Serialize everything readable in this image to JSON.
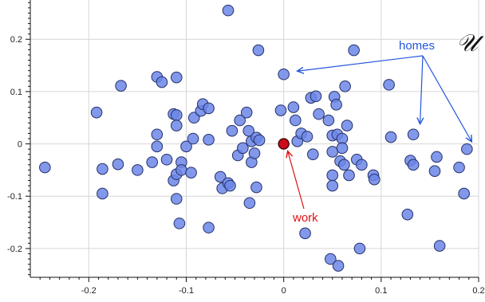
{
  "chart_data": {
    "type": "scatter",
    "xlim": [
      -0.26,
      0.2
    ],
    "ylim": [
      -0.255,
      0.275
    ],
    "xticks": [
      -0.2,
      -0.1,
      0,
      0.1,
      0.2
    ],
    "xtick_labels": [
      "-0.2",
      "-0.1",
      "0",
      "0.1",
      "0.2"
    ],
    "yticks": [
      -0.2,
      -0.1,
      0,
      0.1,
      0.2
    ],
    "ytick_labels": [
      "-0.2",
      "-0.1",
      "0",
      "0.1",
      "0.2"
    ],
    "grid": true,
    "colors": {
      "homes": "#6c86e8",
      "homes_edge": "#24306a",
      "work": "#cc0a1a",
      "homes_annotation": "#2255dd",
      "work_annotation": "#dd1111"
    },
    "annotations": {
      "homes_label": "homes",
      "set_symbol": "𝒰",
      "work_label": "work"
    },
    "work": {
      "x": 0.0,
      "y": 0.0
    },
    "homes_arrow_targets": [
      {
        "x": 0.009,
        "y": 0.133
      },
      {
        "x": 0.135,
        "y": 0.032
      },
      {
        "x": 0.188,
        "y": -0.002
      }
    ],
    "homes": [
      {
        "x": -0.245,
        "y": -0.045
      },
      {
        "x": -0.192,
        "y": 0.06
      },
      {
        "x": -0.186,
        "y": -0.048
      },
      {
        "x": -0.186,
        "y": -0.095
      },
      {
        "x": -0.17,
        "y": -0.039
      },
      {
        "x": -0.167,
        "y": 0.111
      },
      {
        "x": -0.15,
        "y": -0.05
      },
      {
        "x": -0.135,
        "y": -0.035
      },
      {
        "x": -0.13,
        "y": 0.128
      },
      {
        "x": -0.13,
        "y": 0.018
      },
      {
        "x": -0.13,
        "y": -0.005
      },
      {
        "x": -0.125,
        "y": 0.118
      },
      {
        "x": -0.12,
        "y": -0.03
      },
      {
        "x": -0.113,
        "y": 0.057
      },
      {
        "x": -0.113,
        "y": -0.07
      },
      {
        "x": -0.11,
        "y": 0.127
      },
      {
        "x": -0.11,
        "y": 0.055
      },
      {
        "x": -0.11,
        "y": 0.035
      },
      {
        "x": -0.11,
        "y": -0.058
      },
      {
        "x": -0.11,
        "y": -0.105
      },
      {
        "x": -0.107,
        "y": -0.152
      },
      {
        "x": -0.105,
        "y": -0.035
      },
      {
        "x": -0.105,
        "y": -0.05
      },
      {
        "x": -0.1,
        "y": -0.005
      },
      {
        "x": -0.095,
        "y": -0.055
      },
      {
        "x": -0.093,
        "y": 0.01
      },
      {
        "x": -0.092,
        "y": 0.05
      },
      {
        "x": -0.085,
        "y": 0.063
      },
      {
        "x": -0.083,
        "y": 0.076
      },
      {
        "x": -0.077,
        "y": 0.068
      },
      {
        "x": -0.077,
        "y": -0.16
      },
      {
        "x": -0.077,
        "y": 0.008
      },
      {
        "x": -0.065,
        "y": -0.063
      },
      {
        "x": -0.063,
        "y": -0.085
      },
      {
        "x": -0.057,
        "y": 0.255
      },
      {
        "x": -0.057,
        "y": -0.075
      },
      {
        "x": -0.055,
        "y": -0.08
      },
      {
        "x": -0.053,
        "y": 0.025
      },
      {
        "x": -0.047,
        "y": -0.022
      },
      {
        "x": -0.045,
        "y": 0.045
      },
      {
        "x": -0.042,
        "y": -0.008
      },
      {
        "x": -0.038,
        "y": 0.06
      },
      {
        "x": -0.036,
        "y": 0.025
      },
      {
        "x": -0.035,
        "y": -0.113
      },
      {
        "x": -0.033,
        "y": -0.035
      },
      {
        "x": -0.033,
        "y": 0.005
      },
      {
        "x": -0.03,
        "y": -0.018
      },
      {
        "x": -0.028,
        "y": 0.012
      },
      {
        "x": -0.028,
        "y": -0.083
      },
      {
        "x": -0.026,
        "y": 0.179
      },
      {
        "x": -0.025,
        "y": 0.007
      },
      {
        "x": -0.003,
        "y": 0.064
      },
      {
        "x": 0.0,
        "y": 0.133
      },
      {
        "x": 0.01,
        "y": 0.07
      },
      {
        "x": 0.012,
        "y": 0.045
      },
      {
        "x": 0.014,
        "y": 0.005
      },
      {
        "x": 0.018,
        "y": 0.02
      },
      {
        "x": 0.022,
        "y": -0.171
      },
      {
        "x": 0.024,
        "y": 0.014
      },
      {
        "x": 0.028,
        "y": 0.088
      },
      {
        "x": 0.03,
        "y": -0.02
      },
      {
        "x": 0.033,
        "y": 0.091
      },
      {
        "x": 0.036,
        "y": 0.057
      },
      {
        "x": 0.046,
        "y": 0.045
      },
      {
        "x": 0.048,
        "y": -0.22
      },
      {
        "x": 0.05,
        "y": 0.016
      },
      {
        "x": 0.05,
        "y": -0.015
      },
      {
        "x": 0.05,
        "y": -0.06
      },
      {
        "x": 0.05,
        "y": -0.08
      },
      {
        "x": 0.052,
        "y": 0.09
      },
      {
        "x": 0.054,
        "y": 0.075
      },
      {
        "x": 0.055,
        "y": 0.018
      },
      {
        "x": 0.056,
        "y": -0.233
      },
      {
        "x": 0.058,
        "y": -0.033
      },
      {
        "x": 0.06,
        "y": 0.01
      },
      {
        "x": 0.06,
        "y": -0.008
      },
      {
        "x": 0.062,
        "y": -0.04
      },
      {
        "x": 0.063,
        "y": 0.11
      },
      {
        "x": 0.065,
        "y": 0.035
      },
      {
        "x": 0.067,
        "y": -0.06
      },
      {
        "x": 0.072,
        "y": 0.179
      },
      {
        "x": 0.075,
        "y": -0.03
      },
      {
        "x": 0.078,
        "y": -0.2
      },
      {
        "x": 0.08,
        "y": -0.04
      },
      {
        "x": 0.092,
        "y": -0.06
      },
      {
        "x": 0.093,
        "y": -0.068
      },
      {
        "x": 0.108,
        "y": 0.113
      },
      {
        "x": 0.11,
        "y": 0.013
      },
      {
        "x": 0.127,
        "y": -0.135
      },
      {
        "x": 0.13,
        "y": -0.032
      },
      {
        "x": 0.133,
        "y": 0.018
      },
      {
        "x": 0.133,
        "y": -0.04
      },
      {
        "x": 0.155,
        "y": -0.052
      },
      {
        "x": 0.157,
        "y": -0.025
      },
      {
        "x": 0.16,
        "y": -0.195
      },
      {
        "x": 0.18,
        "y": -0.045
      },
      {
        "x": 0.185,
        "y": -0.095
      },
      {
        "x": 0.188,
        "y": -0.01
      }
    ]
  }
}
